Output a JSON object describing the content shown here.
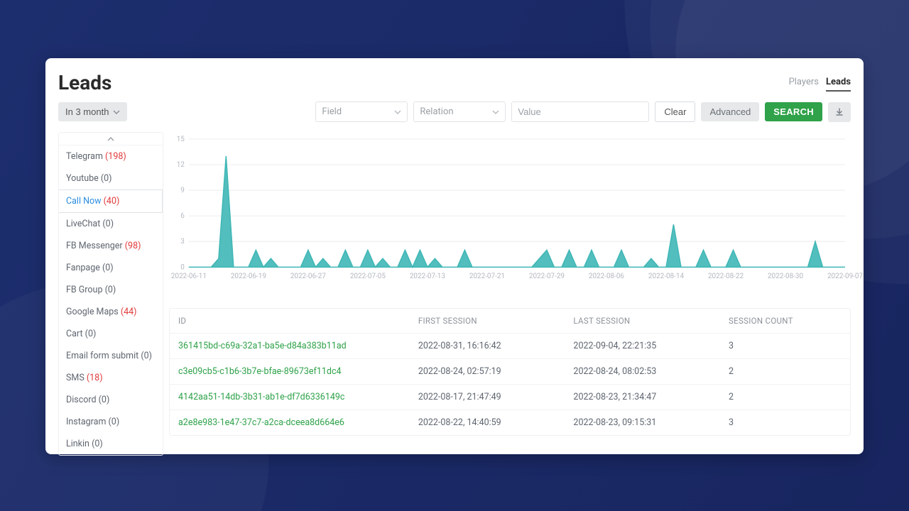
{
  "page": {
    "title": "Leads"
  },
  "tabs": {
    "players": "Players",
    "leads": "Leads",
    "active": "leads"
  },
  "toolbar": {
    "date_label": "In 3 month",
    "field_placeholder": "Field",
    "relation_placeholder": "Relation",
    "value_placeholder": "Value",
    "clear": "Clear",
    "advanced": "Advanced",
    "search": "SEARCH"
  },
  "sidebar": {
    "items": [
      {
        "label": "Telegram",
        "count": 198,
        "count_style": "red"
      },
      {
        "label": "Youtube",
        "count": 0
      },
      {
        "label": "Call Now",
        "count": 40,
        "count_style": "red",
        "active": true
      },
      {
        "label": "LiveChat",
        "count": 0
      },
      {
        "label": "FB Messenger",
        "count": 98,
        "count_style": "red"
      },
      {
        "label": "Fanpage",
        "count": 0
      },
      {
        "label": "FB Group",
        "count": 0
      },
      {
        "label": "Google Maps",
        "count": 44,
        "count_style": "red"
      },
      {
        "label": "Cart",
        "count": 0
      },
      {
        "label": "Email form submit",
        "count": 0
      },
      {
        "label": "SMS",
        "count": 18,
        "count_style": "red"
      },
      {
        "label": "Discord",
        "count": 0
      },
      {
        "label": "Instagram",
        "count": 0
      },
      {
        "label": "Linkin",
        "count": 0
      }
    ]
  },
  "chart": {
    "type": "area",
    "color": "#3fb7b6",
    "fill_opacity": 0.9,
    "line_width": 1.5,
    "background_color": "#ffffff",
    "grid_color": "#ececec",
    "axis_label_color": "#b3b8bf",
    "axis_label_fontsize": 10,
    "ylim": [
      0,
      15
    ],
    "yticks": [
      0,
      3,
      6,
      9,
      12,
      15
    ],
    "xticks": [
      "2022-06-11",
      "2022-06-19",
      "2022-06-27",
      "2022-07-05",
      "2022-07-13",
      "2022-07-21",
      "2022-07-29",
      "2022-08-06",
      "2022-08-14",
      "2022-08-22",
      "2022-08-30",
      "2022-09-07"
    ],
    "x_dates": [
      "2022-06-11",
      "2022-06-12",
      "2022-06-13",
      "2022-06-14",
      "2022-06-15",
      "2022-06-16",
      "2022-06-17",
      "2022-06-18",
      "2022-06-19",
      "2022-06-20",
      "2022-06-21",
      "2022-06-22",
      "2022-06-23",
      "2022-06-24",
      "2022-06-25",
      "2022-06-26",
      "2022-06-27",
      "2022-06-28",
      "2022-06-29",
      "2022-06-30",
      "2022-07-01",
      "2022-07-02",
      "2022-07-03",
      "2022-07-04",
      "2022-07-05",
      "2022-07-06",
      "2022-07-07",
      "2022-07-08",
      "2022-07-09",
      "2022-07-10",
      "2022-07-11",
      "2022-07-12",
      "2022-07-13",
      "2022-07-14",
      "2022-07-15",
      "2022-07-16",
      "2022-07-17",
      "2022-07-18",
      "2022-07-19",
      "2022-07-20",
      "2022-07-21",
      "2022-07-22",
      "2022-07-23",
      "2022-07-24",
      "2022-07-25",
      "2022-07-26",
      "2022-07-27",
      "2022-07-28",
      "2022-07-29",
      "2022-07-30",
      "2022-07-31",
      "2022-08-01",
      "2022-08-02",
      "2022-08-03",
      "2022-08-04",
      "2022-08-05",
      "2022-08-06",
      "2022-08-07",
      "2022-08-08",
      "2022-08-09",
      "2022-08-10",
      "2022-08-11",
      "2022-08-12",
      "2022-08-13",
      "2022-08-14",
      "2022-08-15",
      "2022-08-16",
      "2022-08-17",
      "2022-08-18",
      "2022-08-19",
      "2022-08-20",
      "2022-08-21",
      "2022-08-22",
      "2022-08-23",
      "2022-08-24",
      "2022-08-25",
      "2022-08-26",
      "2022-08-27",
      "2022-08-28",
      "2022-08-29",
      "2022-08-30",
      "2022-08-31",
      "2022-09-01",
      "2022-09-02",
      "2022-09-03",
      "2022-09-04",
      "2022-09-05",
      "2022-09-06",
      "2022-09-07"
    ],
    "values": [
      0,
      0,
      0,
      0,
      1,
      13,
      0,
      0,
      0,
      2,
      0,
      1,
      0,
      0,
      0,
      0,
      2,
      0,
      1,
      0,
      0,
      2,
      0,
      0,
      2,
      0,
      1,
      0,
      0,
      2,
      0,
      2,
      0,
      1,
      0,
      0,
      0,
      2,
      0,
      0,
      0,
      0,
      0,
      0,
      0,
      0,
      0,
      1,
      2,
      0,
      0,
      2,
      0,
      0,
      2,
      0,
      0,
      0,
      2,
      0,
      0,
      0,
      1,
      0,
      0,
      5,
      0,
      0,
      0,
      2,
      0,
      0,
      0,
      2,
      0,
      0,
      0,
      0,
      0,
      0,
      0,
      0,
      0,
      0,
      3,
      0,
      0,
      0,
      0
    ]
  },
  "table": {
    "columns": [
      "ID",
      "FIRST SESSION",
      "LAST SESSION",
      "SESSION COUNT"
    ],
    "rows": [
      {
        "id": "361415bd-c69a-32a1-ba5e-d84a383b11ad",
        "first": "2022-08-31, 16:16:42",
        "last": "2022-09-04, 22:21:35",
        "count": 3
      },
      {
        "id": "c3e09cb5-c1b6-3b7e-bfae-89673ef11dc4",
        "first": "2022-08-24, 02:57:19",
        "last": "2022-08-24, 08:02:53",
        "count": 2
      },
      {
        "id": "4142aa51-14db-3b31-ab1e-df7d6336149c",
        "first": "2022-08-17, 21:47:49",
        "last": "2022-08-23, 21:34:47",
        "count": 2
      },
      {
        "id": "a2e8e983-1e47-37c7-a2ca-dceea8d664e6",
        "first": "2022-08-22, 14:40:59",
        "last": "2022-08-23, 09:15:31",
        "count": 3
      }
    ]
  }
}
